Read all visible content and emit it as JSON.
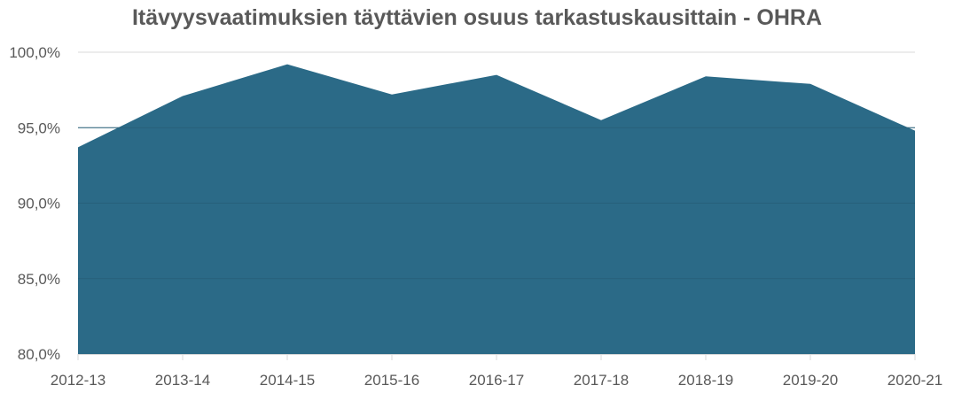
{
  "chart_data": {
    "type": "area",
    "title": "Itävyysvaatimuksien täyttävien osuus tarkastuskausittain - OHRA",
    "xlabel": "",
    "ylabel": "",
    "categories": [
      "2012-13",
      "2013-14",
      "2014-15",
      "2015-16",
      "2016-17",
      "2017-18",
      "2018-19",
      "2019-20",
      "2020-21"
    ],
    "series": [
      {
        "name": "OHRA",
        "values": [
          93.7,
          97.1,
          99.2,
          97.2,
          98.5,
          95.5,
          98.4,
          97.9,
          94.8
        ],
        "color": "#2B6A87"
      }
    ],
    "ylim": [
      80,
      100
    ],
    "yticks": [
      "80,0%",
      "85,0%",
      "90,0%",
      "95,0%",
      "100,0%"
    ],
    "ytick_values": [
      80,
      85,
      90,
      95,
      100
    ],
    "grid": true,
    "legend": "none"
  },
  "colors": {
    "area": "#2B6A87",
    "grid": "#D9D9D9",
    "text": "#595959"
  }
}
